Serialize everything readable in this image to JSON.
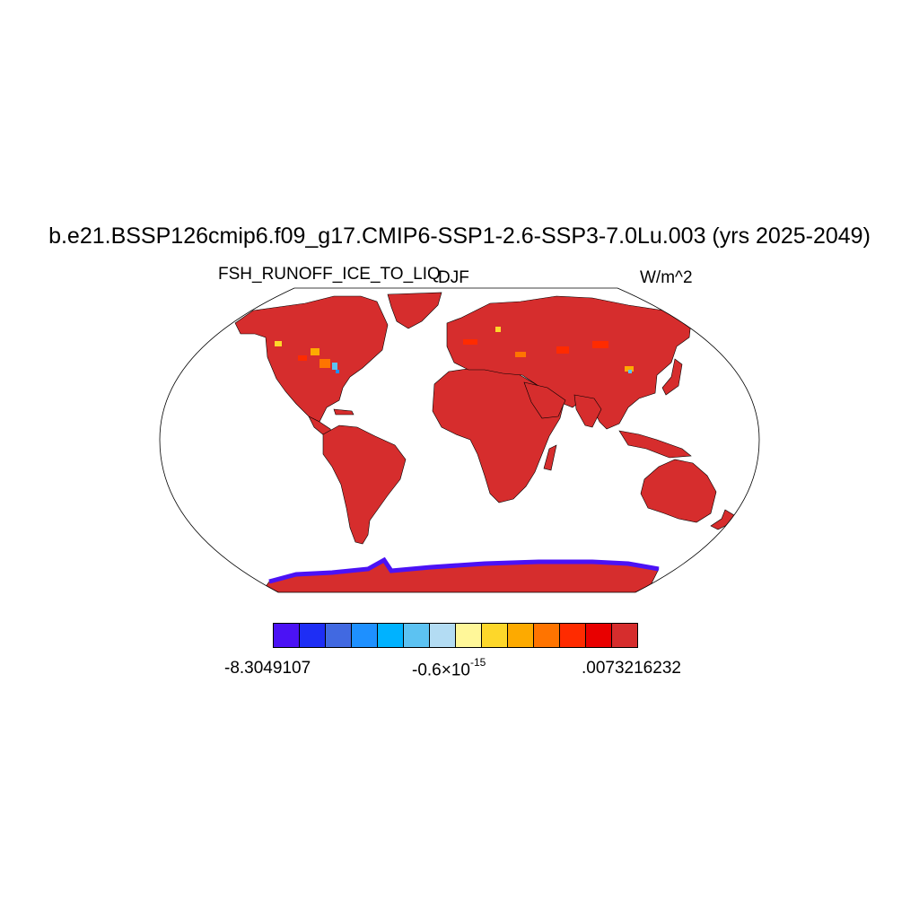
{
  "map": {
    "title": "b.e21.BSSP126cmip6.f09_g17.CMIP6-SSP1-2.6-SSP3-7.0Lu.003 (yrs 2025-2049)",
    "left_subtitle": "FSH_RUNOFF_ICE_TO_LIQ",
    "center_subtitle": "DJF",
    "right_subtitle": "W/m^2",
    "projection": "robinson",
    "land_fill_color": "#d62d2d",
    "ocean_fill_color": "#ffffff"
  },
  "colorbar": {
    "colors": [
      "#4b12f5",
      "#1e2ef5",
      "#4169e1",
      "#1e90ff",
      "#00b2ff",
      "#5cc2f2",
      "#b3dcf3",
      "#fff799",
      "#fdd72a",
      "#fdaa00",
      "#ff7400",
      "#ff2b00",
      "#e80000",
      "#d62d2d"
    ],
    "label_min": "-8.3049107",
    "label_mid_base": "-0.6×10",
    "label_mid_exp": "-15",
    "label_max": ".0073216232"
  }
}
